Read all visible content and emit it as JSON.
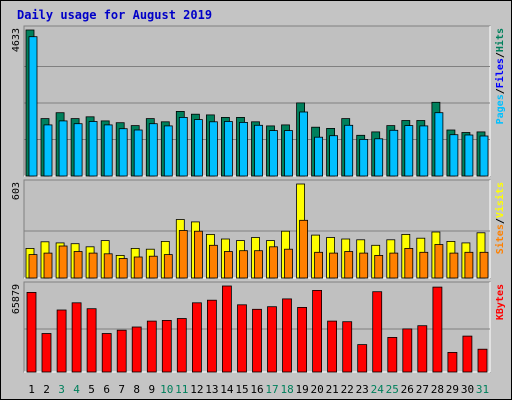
{
  "chart_data": {
    "type": "bar",
    "title": "Daily usage for August 2019",
    "categories": [
      "1",
      "2",
      "3",
      "4",
      "5",
      "6",
      "7",
      "8",
      "9",
      "10",
      "11",
      "12",
      "13",
      "14",
      "15",
      "16",
      "17",
      "18",
      "19",
      "20",
      "21",
      "22",
      "23",
      "24",
      "25",
      "26",
      "27",
      "28",
      "29",
      "30",
      "31"
    ],
    "weekend_categories": [
      "3",
      "4",
      "10",
      "11",
      "17",
      "18",
      "24",
      "25",
      "31"
    ],
    "panels": [
      {
        "id": "hits",
        "max_label": "4633",
        "ymax": 4633,
        "series": [
          {
            "name": "Hits",
            "color": "#00805c",
            "values": [
              4633,
              1820,
              2010,
              1820,
              1880,
              1750,
              1690,
              1600,
              1820,
              1720,
              2050,
              1960,
              1940,
              1860,
              1860,
              1720,
              1590,
              1620,
              2320,
              1550,
              1510,
              1820,
              1290,
              1400,
              1600,
              1760,
              1760,
              2340,
              1460,
              1380,
              1400
            ]
          },
          {
            "name": "Files",
            "color": "#0000ff",
            "values": [
              4633,
              1820,
              2010,
              1820,
              1880,
              1750,
              1690,
              1600,
              1820,
              1720,
              2050,
              1960,
              1940,
              1860,
              1860,
              1720,
              1590,
              1620,
              2320,
              1550,
              1510,
              1820,
              1290,
              1400,
              1600,
              1760,
              1760,
              2340,
              1460,
              1380,
              1400
            ]
          },
          {
            "name": "Pages",
            "color": "#00c0ff",
            "values": [
              4420,
              1620,
              1750,
              1660,
              1730,
              1620,
              1500,
              1460,
              1660,
              1590,
              1860,
              1790,
              1720,
              1730,
              1700,
              1610,
              1440,
              1440,
              2030,
              1230,
              1280,
              1610,
              1160,
              1180,
              1450,
              1600,
              1590,
              2010,
              1310,
              1300,
              1270
            ]
          }
        ],
        "legend_right": [
          "Pages",
          "Files",
          "Hits"
        ]
      },
      {
        "id": "visits",
        "max_label": "603",
        "ymax": 603,
        "series": [
          {
            "name": "Visits",
            "color": "#ffff00",
            "values": [
              190,
              232,
              225,
              220,
              200,
              240,
              145,
              190,
              185,
              235,
              375,
              360,
              280,
              250,
              240,
              260,
              240,
              300,
              603,
              275,
              260,
              250,
              245,
              210,
              245,
              280,
              255,
              295,
              235,
              225,
              290
            ]
          },
          {
            "name": "Sites",
            "color": "#ff8000",
            "values": [
              150,
              160,
              205,
              170,
              160,
              155,
              125,
              135,
              140,
              150,
              305,
              300,
              210,
              170,
              175,
              175,
              200,
              185,
              370,
              165,
              160,
              170,
              160,
              145,
              160,
              190,
              165,
              215,
              160,
              165,
              165
            ]
          }
        ],
        "legend_right": [
          "Sites",
          "Visits"
        ]
      },
      {
        "id": "kbytes",
        "max_label": "65879",
        "ymax": 65879,
        "series": [
          {
            "name": "KBytes",
            "color": "#ff0000",
            "values": [
              61000,
              29500,
              47500,
              53000,
              48500,
              29500,
              32000,
              34500,
              39000,
              39500,
              41000,
              53000,
              55000,
              65879,
              51500,
              48000,
              50000,
              56000,
              49500,
              62500,
              39000,
              38500,
              21000,
              61500,
              26500,
              33000,
              35500,
              65000,
              15000,
              27500,
              17500
            ]
          }
        ],
        "legend_right": [
          "KBytes"
        ]
      }
    ],
    "grid": true,
    "legend_position": "right"
  },
  "legend_separator": "/"
}
